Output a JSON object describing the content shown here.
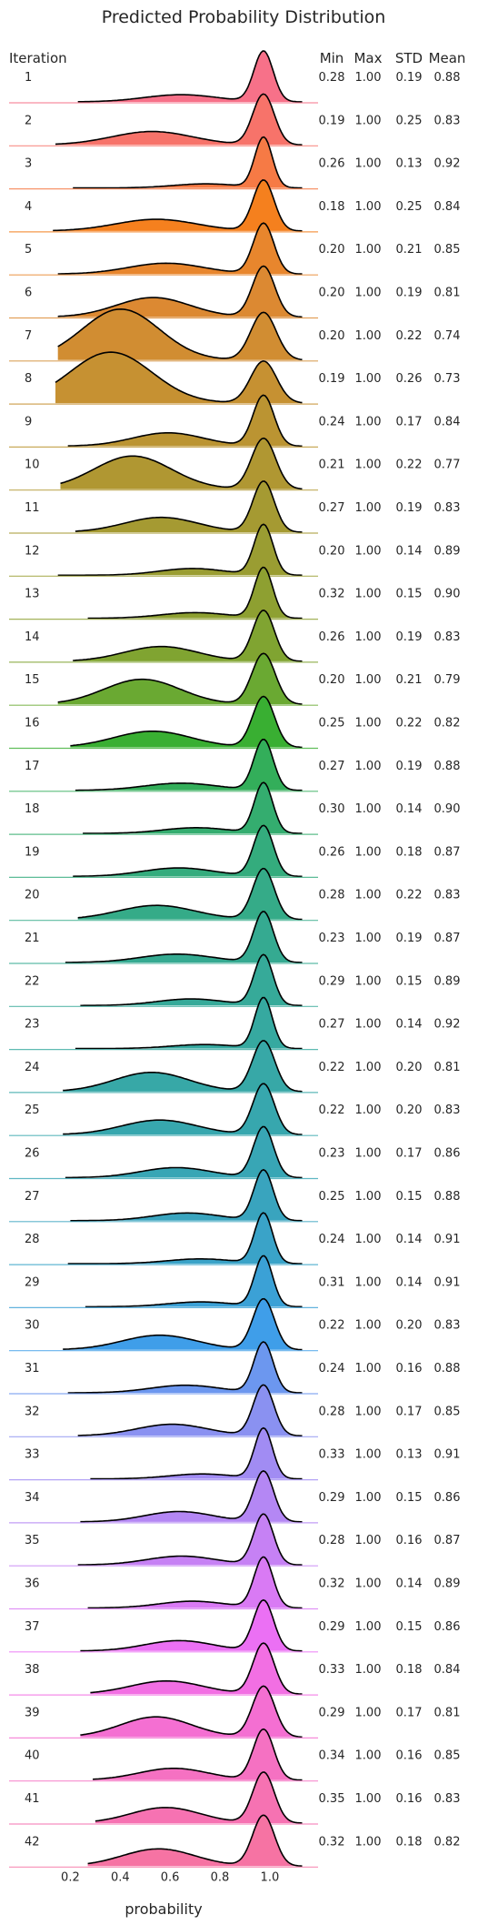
{
  "chart_data": {
    "type": "ridgeline",
    "title": "Predicted Probability Distribution",
    "row_header": "Iteration",
    "stat_headers": [
      "Min",
      "Max",
      "STD",
      "Mean"
    ],
    "xlabel": "probability",
    "xlim": [
      0.1,
      1.15
    ],
    "xticks": [
      "0.2",
      "0.4",
      "0.6",
      "0.8",
      "1.0"
    ],
    "xtick_values": [
      0.2,
      0.4,
      0.6,
      0.8,
      1.0
    ],
    "rows": [
      {
        "label": "1",
        "min": "0.28",
        "max": "1.00",
        "std": "0.19",
        "mean": "0.88",
        "color": "#f77189"
      },
      {
        "label": "2",
        "min": "0.19",
        "max": "1.00",
        "std": "0.25",
        "mean": "0.83",
        "color": "#f7736a"
      },
      {
        "label": "3",
        "min": "0.26",
        "max": "1.00",
        "std": "0.13",
        "mean": "0.92",
        "color": "#f67a45"
      },
      {
        "label": "4",
        "min": "0.18",
        "max": "1.00",
        "std": "0.25",
        "mean": "0.84",
        "color": "#f5801e"
      },
      {
        "label": "5",
        "min": "0.20",
        "max": "1.00",
        "std": "0.21",
        "mean": "0.85",
        "color": "#e8862d"
      },
      {
        "label": "6",
        "min": "0.20",
        "max": "1.00",
        "std": "0.19",
        "mean": "0.81",
        "color": "#dc8932"
      },
      {
        "label": "7",
        "min": "0.20",
        "max": "1.00",
        "std": "0.22",
        "mean": "0.74",
        "color": "#d18d32"
      },
      {
        "label": "8",
        "min": "0.19",
        "max": "1.00",
        "std": "0.26",
        "mean": "0.73",
        "color": "#c69132"
      },
      {
        "label": "9",
        "min": "0.24",
        "max": "1.00",
        "std": "0.17",
        "mean": "0.84",
        "color": "#bb9432"
      },
      {
        "label": "10",
        "min": "0.21",
        "max": "1.00",
        "std": "0.22",
        "mean": "0.77",
        "color": "#b09732"
      },
      {
        "label": "11",
        "min": "0.27",
        "max": "1.00",
        "std": "0.19",
        "mean": "0.83",
        "color": "#a59a32"
      },
      {
        "label": "12",
        "min": "0.20",
        "max": "1.00",
        "std": "0.14",
        "mean": "0.89",
        "color": "#9a9d32"
      },
      {
        "label": "13",
        "min": "0.32",
        "max": "1.00",
        "std": "0.15",
        "mean": "0.90",
        "color": "#8ea031"
      },
      {
        "label": "14",
        "min": "0.26",
        "max": "1.00",
        "std": "0.19",
        "mean": "0.83",
        "color": "#80a431"
      },
      {
        "label": "15",
        "min": "0.20",
        "max": "1.00",
        "std": "0.21",
        "mean": "0.79",
        "color": "#6aa932"
      },
      {
        "label": "16",
        "min": "0.25",
        "max": "1.00",
        "std": "0.22",
        "mean": "0.82",
        "color": "#39af32"
      },
      {
        "label": "17",
        "min": "0.27",
        "max": "1.00",
        "std": "0.19",
        "mean": "0.88",
        "color": "#33ae5a"
      },
      {
        "label": "18",
        "min": "0.30",
        "max": "1.00",
        "std": "0.14",
        "mean": "0.90",
        "color": "#34ad6f"
      },
      {
        "label": "19",
        "min": "0.26",
        "max": "1.00",
        "std": "0.18",
        "mean": "0.87",
        "color": "#34ac7d"
      },
      {
        "label": "20",
        "min": "0.28",
        "max": "1.00",
        "std": "0.22",
        "mean": "0.83",
        "color": "#35ab88"
      },
      {
        "label": "21",
        "min": "0.23",
        "max": "1.00",
        "std": "0.19",
        "mean": "0.87",
        "color": "#35aa91"
      },
      {
        "label": "22",
        "min": "0.29",
        "max": "1.00",
        "std": "0.15",
        "mean": "0.89",
        "color": "#36aa99"
      },
      {
        "label": "23",
        "min": "0.27",
        "max": "1.00",
        "std": "0.14",
        "mean": "0.92",
        "color": "#36a9a0"
      },
      {
        "label": "24",
        "min": "0.22",
        "max": "1.00",
        "std": "0.20",
        "mean": "0.81",
        "color": "#37a8a7"
      },
      {
        "label": "25",
        "min": "0.22",
        "max": "1.00",
        "std": "0.20",
        "mean": "0.83",
        "color": "#37a7ae"
      },
      {
        "label": "26",
        "min": "0.23",
        "max": "1.00",
        "std": "0.17",
        "mean": "0.86",
        "color": "#38a6b5"
      },
      {
        "label": "27",
        "min": "0.25",
        "max": "1.00",
        "std": "0.15",
        "mean": "0.88",
        "color": "#39a4be"
      },
      {
        "label": "28",
        "min": "0.24",
        "max": "1.00",
        "std": "0.14",
        "mean": "0.91",
        "color": "#3aa3c8"
      },
      {
        "label": "29",
        "min": "0.31",
        "max": "1.00",
        "std": "0.14",
        "mean": "0.91",
        "color": "#3ba1d6"
      },
      {
        "label": "30",
        "min": "0.22",
        "max": "1.00",
        "std": "0.20",
        "mean": "0.83",
        "color": "#3f9ee9"
      },
      {
        "label": "31",
        "min": "0.24",
        "max": "1.00",
        "std": "0.16",
        "mean": "0.88",
        "color": "#6c97ef"
      },
      {
        "label": "32",
        "min": "0.28",
        "max": "1.00",
        "std": "0.17",
        "mean": "0.85",
        "color": "#8a91f1"
      },
      {
        "label": "33",
        "min": "0.33",
        "max": "1.00",
        "std": "0.13",
        "mean": "0.91",
        "color": "#a18cf3"
      },
      {
        "label": "34",
        "min": "0.29",
        "max": "1.00",
        "std": "0.15",
        "mean": "0.86",
        "color": "#b487f4"
      },
      {
        "label": "35",
        "min": "0.28",
        "max": "1.00",
        "std": "0.16",
        "mean": "0.87",
        "color": "#c681f4"
      },
      {
        "label": "36",
        "min": "0.32",
        "max": "1.00",
        "std": "0.14",
        "mean": "0.89",
        "color": "#d97af4"
      },
      {
        "label": "37",
        "min": "0.29",
        "max": "1.00",
        "std": "0.15",
        "mean": "0.86",
        "color": "#eb70f4"
      },
      {
        "label": "38",
        "min": "0.33",
        "max": "1.00",
        "std": "0.18",
        "mean": "0.84",
        "color": "#f26fe3"
      },
      {
        "label": "39",
        "min": "0.29",
        "max": "1.00",
        "std": "0.17",
        "mean": "0.81",
        "color": "#f46fd2"
      },
      {
        "label": "40",
        "min": "0.34",
        "max": "1.00",
        "std": "0.16",
        "mean": "0.85",
        "color": "#f571c2"
      },
      {
        "label": "41",
        "min": "0.35",
        "max": "1.00",
        "std": "0.16",
        "mean": "0.83",
        "color": "#f672b2"
      },
      {
        "label": "42",
        "min": "0.32",
        "max": "1.00",
        "std": "0.18",
        "mean": "0.82",
        "color": "#f673a3"
      }
    ]
  }
}
